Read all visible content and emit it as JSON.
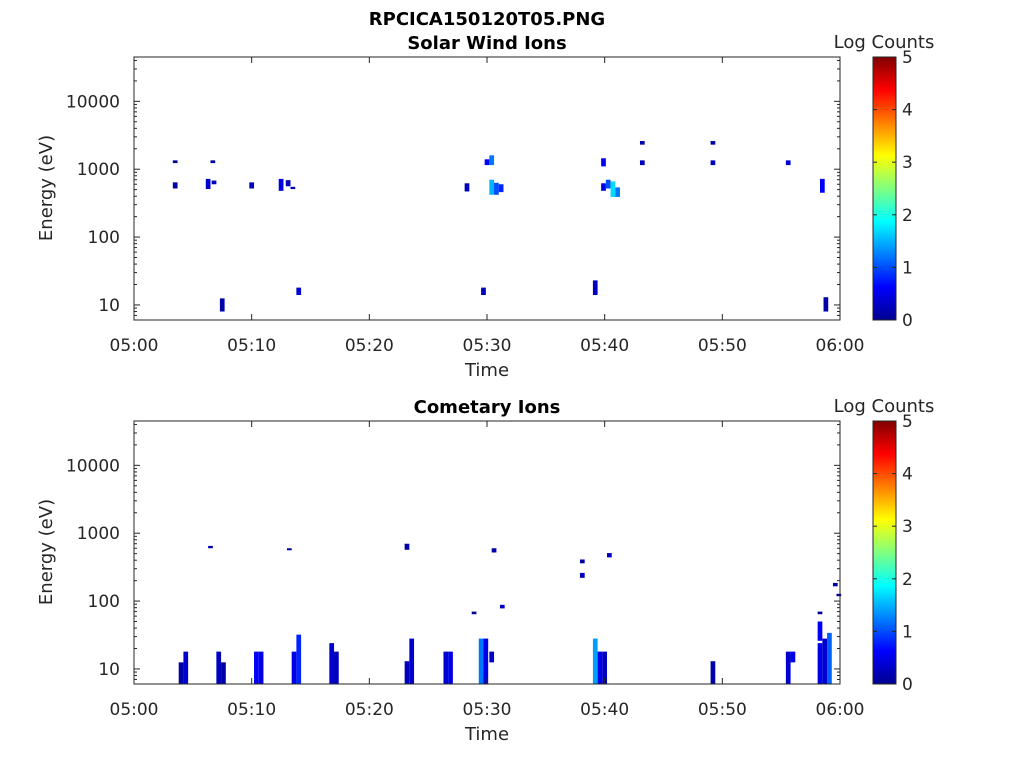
{
  "figure": {
    "title": "RPCICA150120T05.PNG"
  },
  "colormap": "jet",
  "chart_data": [
    {
      "type": "heatmap",
      "title": "Solar Wind Ions",
      "xlabel": "Time",
      "ylabel": "Energy (eV)",
      "yscale": "log",
      "xlim": [
        "05:00",
        "06:00"
      ],
      "ylim": [
        6,
        45000
      ],
      "xticks": [
        "05:00",
        "05:10",
        "05:20",
        "05:30",
        "05:40",
        "05:50",
        "06:00"
      ],
      "yticks": [
        "10",
        "100",
        "1000",
        "10000"
      ],
      "colorbar": {
        "label": "Log Counts",
        "range": [
          0,
          5
        ],
        "ticks": [
          "0",
          "1",
          "2",
          "3",
          "4",
          "5"
        ]
      },
      "cells": [
        {
          "t": 3.3,
          "w": 0.4,
          "e1": 1230,
          "e2": 1350,
          "v": 0.1
        },
        {
          "t": 3.3,
          "w": 0.4,
          "e1": 520,
          "e2": 640,
          "v": 0.2
        },
        {
          "t": 6.1,
          "w": 0.4,
          "e1": 510,
          "e2": 720,
          "v": 0.4
        },
        {
          "t": 6.5,
          "w": 0.4,
          "e1": 1230,
          "e2": 1350,
          "v": 0.2
        },
        {
          "t": 6.6,
          "w": 0.4,
          "e1": 600,
          "e2": 680,
          "v": 0.3
        },
        {
          "t": 7.3,
          "w": 0.4,
          "e1": 8,
          "e2": 12.5,
          "v": 0.2
        },
        {
          "t": 9.8,
          "w": 0.4,
          "e1": 520,
          "e2": 640,
          "v": 0.3
        },
        {
          "t": 12.3,
          "w": 0.4,
          "e1": 480,
          "e2": 720,
          "v": 0.5
        },
        {
          "t": 12.9,
          "w": 0.4,
          "e1": 560,
          "e2": 690,
          "v": 0.3
        },
        {
          "t": 13.3,
          "w": 0.4,
          "e1": 510,
          "e2": 550,
          "v": 0.2
        },
        {
          "t": 13.8,
          "w": 0.4,
          "e1": 14,
          "e2": 18,
          "v": 0.4
        },
        {
          "t": 28.1,
          "w": 0.4,
          "e1": 470,
          "e2": 620,
          "v": 0.3
        },
        {
          "t": 29.5,
          "w": 0.4,
          "e1": 14,
          "e2": 18,
          "v": 0.3
        },
        {
          "t": 29.8,
          "w": 0.4,
          "e1": 1150,
          "e2": 1400,
          "v": 0.6
        },
        {
          "t": 30.2,
          "w": 0.4,
          "e1": 1150,
          "e2": 1600,
          "v": 1.2
        },
        {
          "t": 30.2,
          "w": 0.4,
          "e1": 420,
          "e2": 700,
          "v": 1.5
        },
        {
          "t": 30.6,
          "w": 0.4,
          "e1": 420,
          "e2": 630,
          "v": 1.0
        },
        {
          "t": 31.0,
          "w": 0.4,
          "e1": 460,
          "e2": 600,
          "v": 0.8
        },
        {
          "t": 39.0,
          "w": 0.4,
          "e1": 14,
          "e2": 23,
          "v": 0.3
        },
        {
          "t": 39.7,
          "w": 0.4,
          "e1": 1100,
          "e2": 1450,
          "v": 0.6
        },
        {
          "t": 39.7,
          "w": 0.4,
          "e1": 480,
          "e2": 620,
          "v": 0.5
        },
        {
          "t": 40.1,
          "w": 0.4,
          "e1": 520,
          "e2": 700,
          "v": 1.0
        },
        {
          "t": 40.5,
          "w": 0.4,
          "e1": 390,
          "e2": 660,
          "v": 1.7
        },
        {
          "t": 40.9,
          "w": 0.4,
          "e1": 390,
          "e2": 540,
          "v": 1.2
        },
        {
          "t": 43.0,
          "w": 0.4,
          "e1": 2300,
          "e2": 2600,
          "v": 0.2
        },
        {
          "t": 43.0,
          "w": 0.4,
          "e1": 1150,
          "e2": 1350,
          "v": 0.3
        },
        {
          "t": 49.0,
          "w": 0.4,
          "e1": 2300,
          "e2": 2600,
          "v": 0.2
        },
        {
          "t": 49.0,
          "w": 0.4,
          "e1": 1150,
          "e2": 1350,
          "v": 0.3
        },
        {
          "t": 55.4,
          "w": 0.4,
          "e1": 1150,
          "e2": 1350,
          "v": 0.4
        },
        {
          "t": 58.3,
          "w": 0.4,
          "e1": 450,
          "e2": 720,
          "v": 0.6
        },
        {
          "t": 58.6,
          "w": 0.4,
          "e1": 8,
          "e2": 13,
          "v": 0.2
        }
      ]
    },
    {
      "type": "heatmap",
      "title": "Cometary Ions",
      "xlabel": "Time",
      "ylabel": "Energy (eV)",
      "yscale": "log",
      "xlim": [
        "05:00",
        "06:00"
      ],
      "ylim": [
        6,
        45000
      ],
      "xticks": [
        "05:00",
        "05:10",
        "05:20",
        "05:30",
        "05:40",
        "05:50",
        "06:00"
      ],
      "yticks": [
        "10",
        "100",
        "1000",
        "10000"
      ],
      "colorbar": {
        "label": "Log Counts",
        "range": [
          0,
          5
        ],
        "ticks": [
          "0",
          "1",
          "2",
          "3",
          "4",
          "5"
        ]
      },
      "cells": [
        {
          "t": 3.8,
          "w": 0.4,
          "e1": 6,
          "e2": 12.5,
          "v": 0.2
        },
        {
          "t": 4.2,
          "w": 0.4,
          "e1": 6,
          "e2": 18,
          "v": 0.4
        },
        {
          "t": 6.3,
          "w": 0.4,
          "e1": 600,
          "e2": 650,
          "v": 0.2
        },
        {
          "t": 7.0,
          "w": 0.4,
          "e1": 6,
          "e2": 18,
          "v": 0.3
        },
        {
          "t": 7.4,
          "w": 0.4,
          "e1": 6,
          "e2": 12.5,
          "v": 0.2
        },
        {
          "t": 10.2,
          "w": 0.4,
          "e1": 6,
          "e2": 18,
          "v": 0.6
        },
        {
          "t": 10.6,
          "w": 0.4,
          "e1": 6,
          "e2": 18,
          "v": 0.5
        },
        {
          "t": 13.0,
          "w": 0.4,
          "e1": 560,
          "e2": 600,
          "v": 0.2
        },
        {
          "t": 13.4,
          "w": 0.4,
          "e1": 6,
          "e2": 18,
          "v": 0.5
        },
        {
          "t": 13.8,
          "w": 0.4,
          "e1": 6,
          "e2": 32,
          "v": 0.8
        },
        {
          "t": 16.6,
          "w": 0.4,
          "e1": 6,
          "e2": 24,
          "v": 0.4
        },
        {
          "t": 17.0,
          "w": 0.4,
          "e1": 6,
          "e2": 18,
          "v": 0.3
        },
        {
          "t": 23.0,
          "w": 0.4,
          "e1": 570,
          "e2": 700,
          "v": 0.2
        },
        {
          "t": 23.0,
          "w": 0.4,
          "e1": 6,
          "e2": 13,
          "v": 0.3
        },
        {
          "t": 23.4,
          "w": 0.4,
          "e1": 6,
          "e2": 28,
          "v": 0.4
        },
        {
          "t": 26.3,
          "w": 0.4,
          "e1": 6,
          "e2": 18,
          "v": 0.4
        },
        {
          "t": 26.7,
          "w": 0.4,
          "e1": 6,
          "e2": 18,
          "v": 0.5
        },
        {
          "t": 28.7,
          "w": 0.4,
          "e1": 64,
          "e2": 70,
          "v": 0.1
        },
        {
          "t": 29.3,
          "w": 0.4,
          "e1": 6,
          "e2": 28,
          "v": 1.2
        },
        {
          "t": 29.7,
          "w": 0.4,
          "e1": 6,
          "e2": 28,
          "v": 0.5
        },
        {
          "t": 30.2,
          "w": 0.4,
          "e1": 12.5,
          "e2": 18,
          "v": 0.3
        },
        {
          "t": 30.4,
          "w": 0.4,
          "e1": 520,
          "e2": 600,
          "v": 0.2
        },
        {
          "t": 31.1,
          "w": 0.4,
          "e1": 78,
          "e2": 88,
          "v": 0.3
        },
        {
          "t": 37.9,
          "w": 0.4,
          "e1": 360,
          "e2": 410,
          "v": 0.2
        },
        {
          "t": 37.9,
          "w": 0.4,
          "e1": 220,
          "e2": 260,
          "v": 0.3
        },
        {
          "t": 39.0,
          "w": 0.4,
          "e1": 6,
          "e2": 28,
          "v": 1.4
        },
        {
          "t": 39.4,
          "w": 0.4,
          "e1": 6,
          "e2": 18,
          "v": 0.5
        },
        {
          "t": 39.8,
          "w": 0.4,
          "e1": 6,
          "e2": 18,
          "v": 0.3
        },
        {
          "t": 40.2,
          "w": 0.4,
          "e1": 440,
          "e2": 510,
          "v": 0.3
        },
        {
          "t": 49.0,
          "w": 0.4,
          "e1": 6,
          "e2": 13,
          "v": 0.2
        },
        {
          "t": 55.4,
          "w": 0.4,
          "e1": 6,
          "e2": 18,
          "v": 0.4
        },
        {
          "t": 55.8,
          "w": 0.4,
          "e1": 12.5,
          "e2": 18,
          "v": 0.5
        },
        {
          "t": 58.1,
          "w": 0.4,
          "e1": 64,
          "e2": 70,
          "v": 0.1
        },
        {
          "t": 58.1,
          "w": 0.4,
          "e1": 26,
          "e2": 50,
          "v": 0.6
        },
        {
          "t": 58.1,
          "w": 0.4,
          "e1": 6,
          "e2": 24,
          "v": 0.5
        },
        {
          "t": 58.5,
          "w": 0.4,
          "e1": 6,
          "e2": 28,
          "v": 0.4
        },
        {
          "t": 58.9,
          "w": 0.4,
          "e1": 6,
          "e2": 34,
          "v": 1.1
        },
        {
          "t": 59.4,
          "w": 0.4,
          "e1": 165,
          "e2": 185,
          "v": 0.2
        },
        {
          "t": 59.7,
          "w": 0.4,
          "e1": 118,
          "e2": 128,
          "v": 0.1
        }
      ]
    }
  ]
}
